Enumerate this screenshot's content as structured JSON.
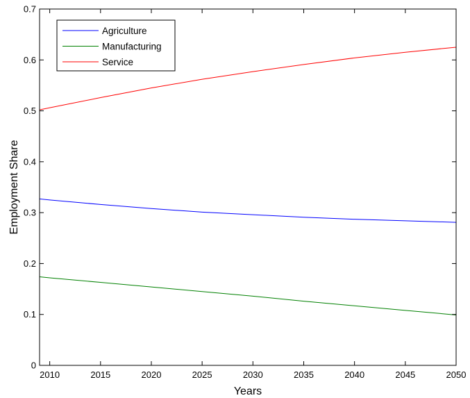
{
  "chart_data": {
    "type": "line",
    "title": "",
    "xlabel": "Years",
    "ylabel": "Employment Share",
    "xlim": [
      2009,
      2050
    ],
    "ylim": [
      0,
      0.7
    ],
    "xticks": [
      2010,
      2015,
      2020,
      2025,
      2030,
      2035,
      2040,
      2045,
      2050
    ],
    "yticks": [
      0,
      0.1,
      0.2,
      0.3,
      0.4,
      0.5,
      0.6,
      0.7
    ],
    "grid": false,
    "legend_position": "top-left",
    "x": [
      2009,
      2010,
      2015,
      2020,
      2025,
      2030,
      2035,
      2040,
      2045,
      2050
    ],
    "series": [
      {
        "name": "Agriculture",
        "color": "#0000ff",
        "values": [
          0.327,
          0.325,
          0.316,
          0.308,
          0.301,
          0.296,
          0.291,
          0.287,
          0.284,
          0.281
        ]
      },
      {
        "name": "Manufacturing",
        "color": "#008000",
        "values": [
          0.174,
          0.172,
          0.163,
          0.154,
          0.145,
          0.136,
          0.126,
          0.117,
          0.108,
          0.099
        ]
      },
      {
        "name": "Service",
        "color": "#ff0000",
        "values": [
          0.502,
          0.506,
          0.526,
          0.545,
          0.562,
          0.577,
          0.591,
          0.604,
          0.615,
          0.625
        ]
      }
    ]
  }
}
